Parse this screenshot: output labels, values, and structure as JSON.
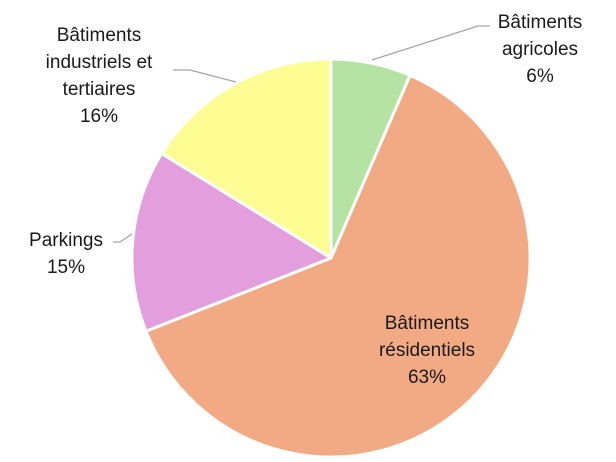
{
  "chart_data": {
    "type": "pie",
    "title": "",
    "slices": [
      {
        "name": "Bâtiments agricoles",
        "label_lines": [
          "Bâtiments",
          "agricoles"
        ],
        "pct_label": "6%",
        "value": 6.5,
        "color": "#b5e3a3"
      },
      {
        "name": "Bâtiments résidentiels",
        "label_lines": [
          "Bâtiments",
          "résidentiels"
        ],
        "pct_label": "63%",
        "value": 62.5,
        "color": "#f2aa84"
      },
      {
        "name": "Parkings",
        "label_lines": [
          "Parkings"
        ],
        "pct_label": "15%",
        "value": 14.8,
        "color": "#e29edd"
      },
      {
        "name": "Bâtiments industriels et tertiaires",
        "label_lines": [
          "Bâtiments",
          "industriels et",
          "tertiaires"
        ],
        "pct_label": "16%",
        "value": 16.2,
        "color": "#fdfd93"
      }
    ],
    "start_angle_deg": 0,
    "direction": "clockwise",
    "legend": "none",
    "data_labels": "category-and-percent"
  }
}
